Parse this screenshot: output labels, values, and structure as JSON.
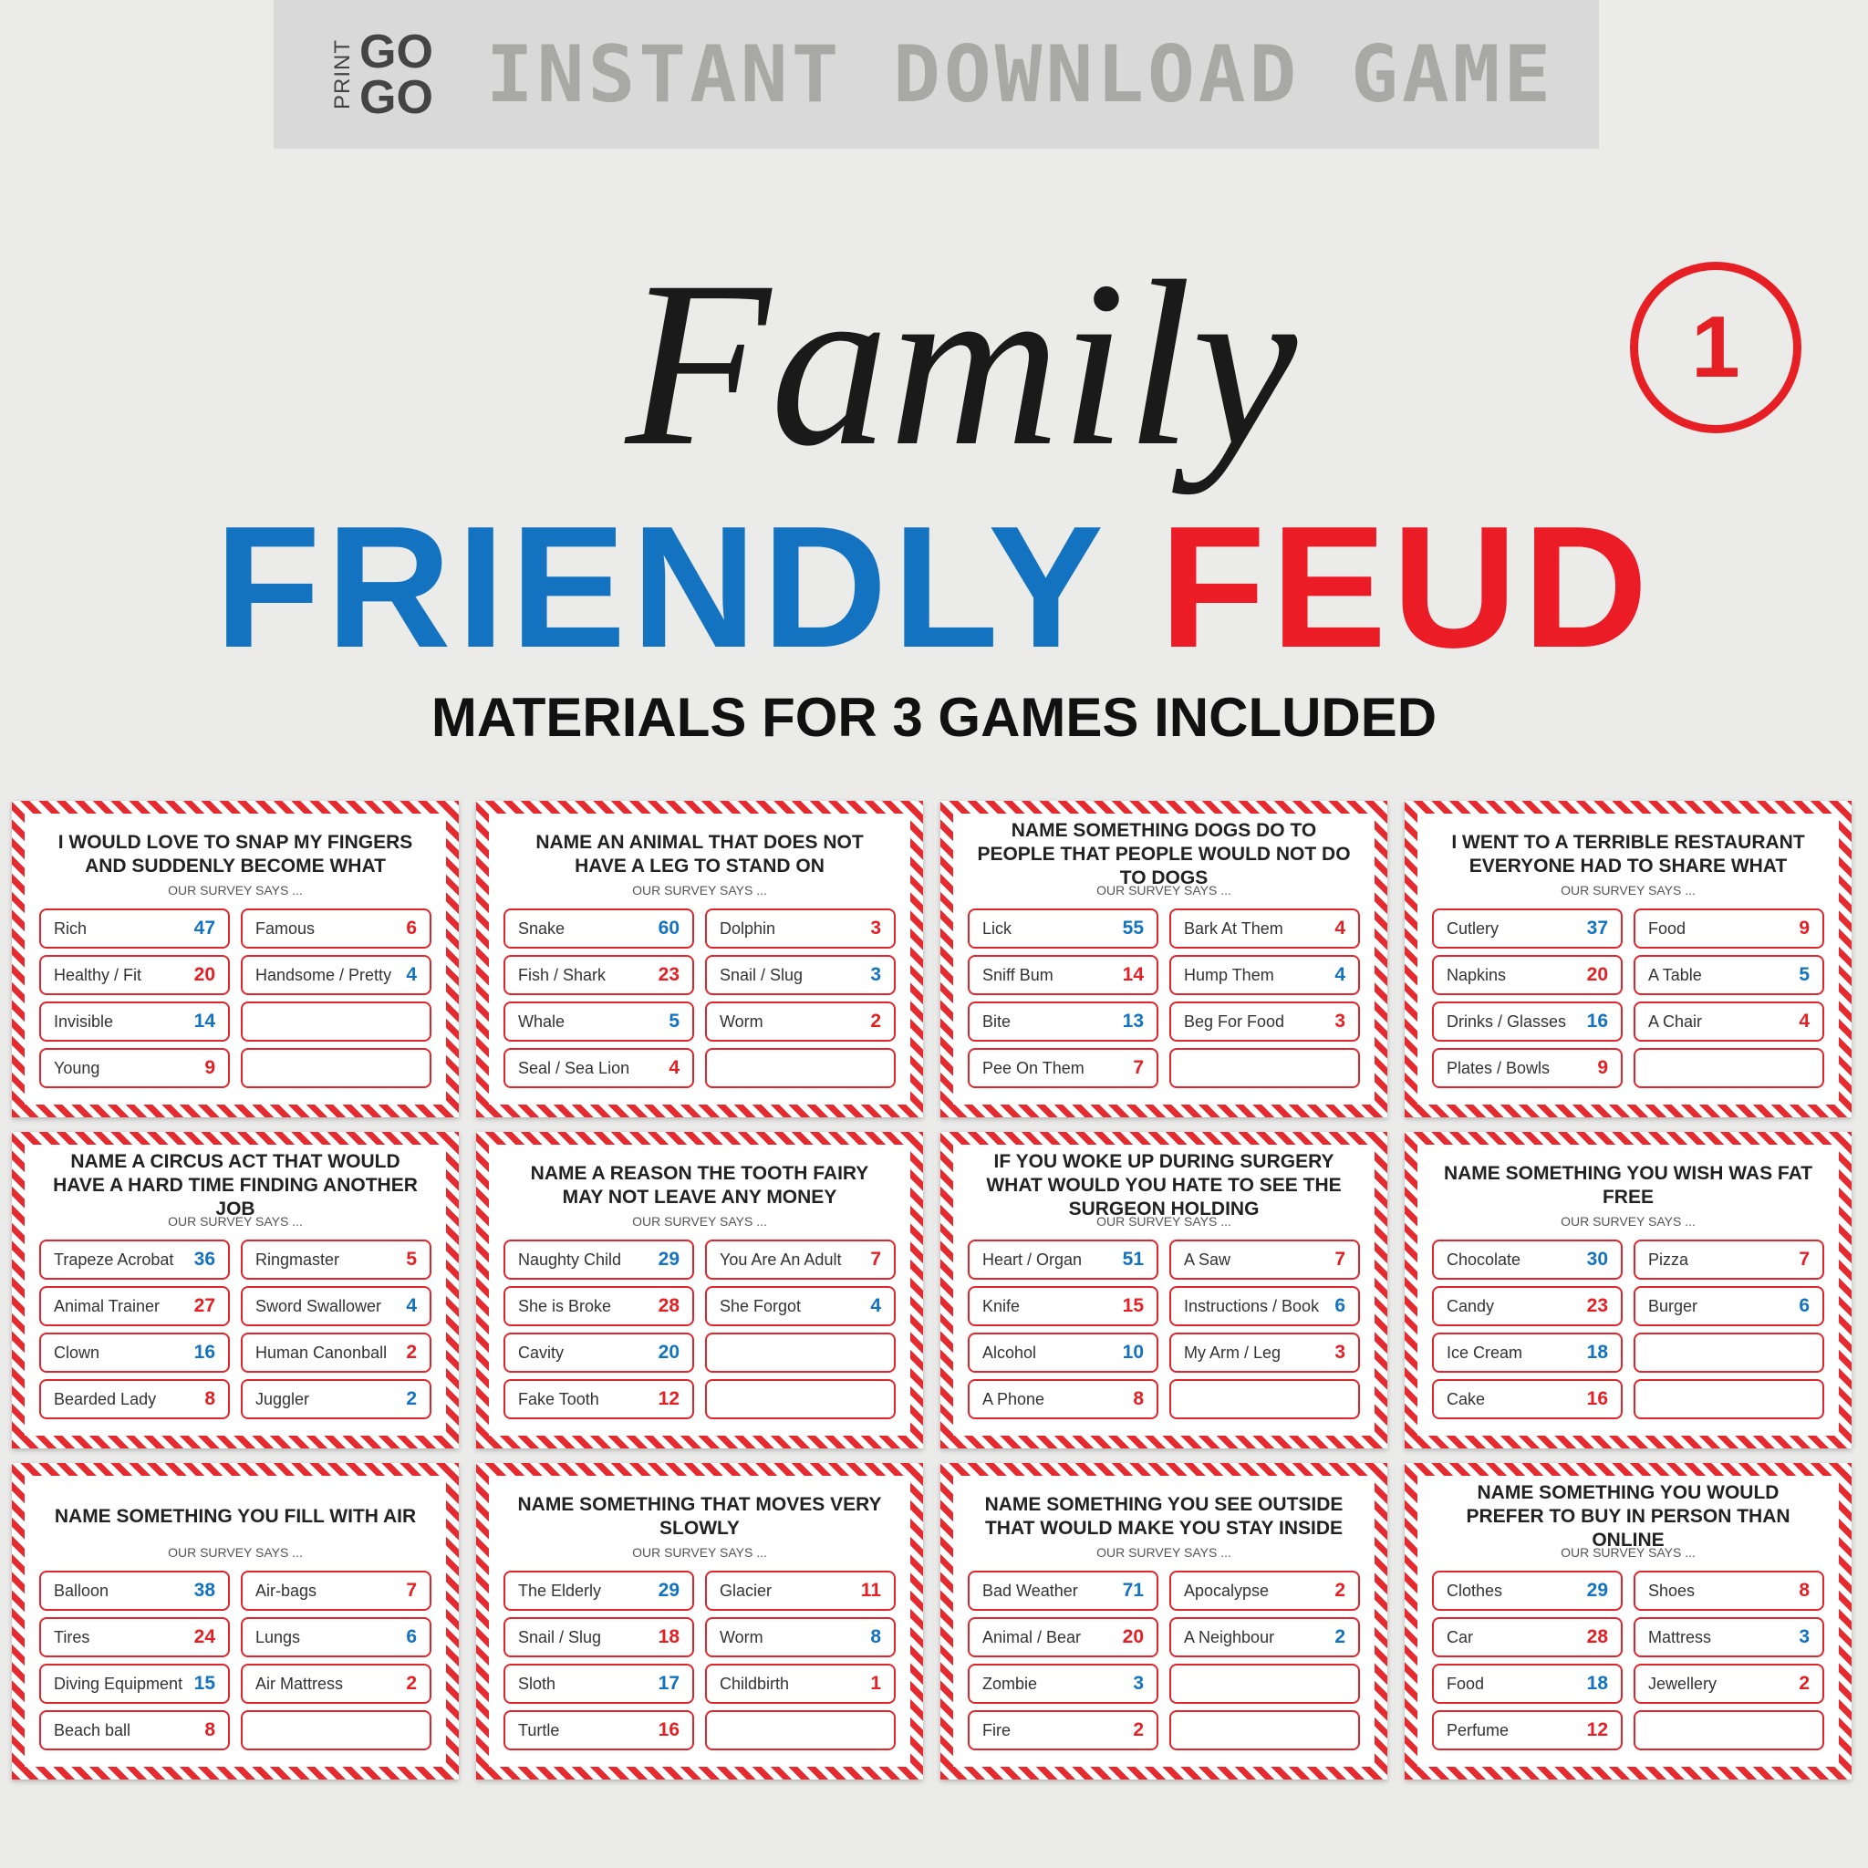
{
  "banner": {
    "brand_vertical": "PRINT",
    "brand_lines": [
      "GO",
      "GO"
    ],
    "title": "INSTANT DOWNLOAD GAME"
  },
  "script_title": "Family",
  "title_blue": "FRIENDLY",
  "title_red": "FEUD",
  "badge": "1",
  "subtitle": "MATERIALS FOR 3 GAMES INCLUDED",
  "caption": "OUR SURVEY SAYS ...",
  "cards": [
    {
      "question": "I WOULD LOVE TO SNAP MY FINGERS AND SUDDENLY BECOME WHAT",
      "left": [
        [
          "Rich",
          47
        ],
        [
          "Healthy / Fit",
          20
        ],
        [
          "Invisible",
          14
        ],
        [
          "Young",
          9
        ]
      ],
      "right": [
        [
          "Famous",
          6
        ],
        [
          "Handsome / Pretty",
          4
        ]
      ]
    },
    {
      "question": "NAME AN ANIMAL THAT DOES NOT HAVE A LEG TO STAND ON",
      "left": [
        [
          "Snake",
          60
        ],
        [
          "Fish / Shark",
          23
        ],
        [
          "Whale",
          5
        ],
        [
          "Seal / Sea Lion",
          4
        ]
      ],
      "right": [
        [
          "Dolphin",
          3
        ],
        [
          "Snail / Slug",
          3
        ],
        [
          "Worm",
          2
        ]
      ]
    },
    {
      "question": "NAME SOMETHING DOGS DO TO PEOPLE THAT PEOPLE WOULD NOT DO TO DOGS",
      "left": [
        [
          "Lick",
          55
        ],
        [
          "Sniff Bum",
          14
        ],
        [
          "Bite",
          13
        ],
        [
          "Pee On Them",
          7
        ]
      ],
      "right": [
        [
          "Bark At Them",
          4
        ],
        [
          "Hump Them",
          4
        ],
        [
          "Beg For Food",
          3
        ]
      ]
    },
    {
      "question": "I WENT TO A TERRIBLE RESTAURANT EVERYONE HAD TO SHARE WHAT",
      "left": [
        [
          "Cutlery",
          37
        ],
        [
          "Napkins",
          20
        ],
        [
          "Drinks / Glasses",
          16
        ],
        [
          "Plates / Bowls",
          9
        ]
      ],
      "right": [
        [
          "Food",
          9
        ],
        [
          "A Table",
          5
        ],
        [
          "A Chair",
          4
        ]
      ]
    },
    {
      "question": "NAME A CIRCUS ACT THAT WOULD HAVE A HARD TIME FINDING ANOTHER JOB",
      "left": [
        [
          "Trapeze Acrobat",
          36
        ],
        [
          "Animal Trainer",
          27
        ],
        [
          "Clown",
          16
        ],
        [
          "Bearded Lady",
          8
        ]
      ],
      "right": [
        [
          "Ringmaster",
          5
        ],
        [
          "Sword Swallower",
          4
        ],
        [
          "Human Canonball",
          2
        ],
        [
          "Juggler",
          2
        ]
      ]
    },
    {
      "question": "NAME A REASON THE TOOTH FAIRY MAY NOT LEAVE ANY MONEY",
      "left": [
        [
          "Naughty Child",
          29
        ],
        [
          "She is Broke",
          28
        ],
        [
          "Cavity",
          20
        ],
        [
          "Fake Tooth",
          12
        ]
      ],
      "right": [
        [
          "You Are An Adult",
          7
        ],
        [
          "She Forgot",
          4
        ]
      ]
    },
    {
      "question": "IF YOU WOKE UP DURING SURGERY WHAT WOULD YOU HATE TO SEE THE SURGEON HOLDING",
      "left": [
        [
          "Heart / Organ",
          51
        ],
        [
          "Knife",
          15
        ],
        [
          "Alcohol",
          10
        ],
        [
          "A Phone",
          8
        ]
      ],
      "right": [
        [
          "A Saw",
          7
        ],
        [
          "Instructions / Book",
          6
        ],
        [
          "My Arm / Leg",
          3
        ]
      ]
    },
    {
      "question": "NAME SOMETHING YOU WISH WAS FAT FREE",
      "left": [
        [
          "Chocolate",
          30
        ],
        [
          "Candy",
          23
        ],
        [
          "Ice Cream",
          18
        ],
        [
          "Cake",
          16
        ]
      ],
      "right": [
        [
          "Pizza",
          7
        ],
        [
          "Burger",
          6
        ]
      ]
    },
    {
      "question": "NAME SOMETHING YOU FILL WITH AIR",
      "left": [
        [
          "Balloon",
          38
        ],
        [
          "Tires",
          24
        ],
        [
          "Diving Equipment",
          15
        ],
        [
          "Beach ball",
          8
        ]
      ],
      "right": [
        [
          "Air-bags",
          7
        ],
        [
          "Lungs",
          6
        ],
        [
          "Air Mattress",
          2
        ]
      ]
    },
    {
      "question": "NAME SOMETHING THAT MOVES VERY SLOWLY",
      "left": [
        [
          "The Elderly",
          29
        ],
        [
          "Snail / Slug",
          18
        ],
        [
          "Sloth",
          17
        ],
        [
          "Turtle",
          16
        ]
      ],
      "right": [
        [
          "Glacier",
          11
        ],
        [
          "Worm",
          8
        ],
        [
          "Childbirth",
          1
        ]
      ]
    },
    {
      "question": "NAME SOMETHING YOU SEE OUTSIDE THAT WOULD MAKE YOU STAY INSIDE",
      "left": [
        [
          "Bad Weather",
          71
        ],
        [
          "Animal / Bear",
          20
        ],
        [
          "Zombie",
          3
        ],
        [
          "Fire",
          2
        ]
      ],
      "right": [
        [
          "Apocalypse",
          2
        ],
        [
          "A Neighbour",
          2
        ]
      ]
    },
    {
      "question": "NAME SOMETHING YOU WOULD PREFER TO BUY IN PERSON THAN ONLINE",
      "left": [
        [
          "Clothes",
          29
        ],
        [
          "Car",
          28
        ],
        [
          "Food",
          18
        ],
        [
          "Perfume",
          12
        ]
      ],
      "right": [
        [
          "Shoes",
          8
        ],
        [
          "Mattress",
          3
        ],
        [
          "Jewellery",
          2
        ]
      ]
    }
  ]
}
